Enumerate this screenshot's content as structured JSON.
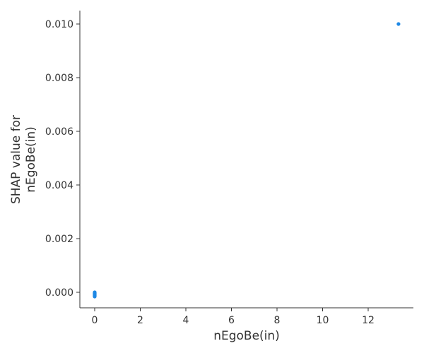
{
  "chart_data": {
    "type": "scatter",
    "title": "",
    "xlabel": "nEgoBe(in)",
    "ylabel_lines": [
      "SHAP value for",
      "nEgoBe(in)"
    ],
    "xlim": [
      -0.6,
      14.0
    ],
    "ylim": [
      -0.00058,
      0.0106
    ],
    "x_ticks": [
      0,
      2,
      4,
      6,
      8,
      10,
      12
    ],
    "x_tick_labels": [
      "0",
      "2",
      "4",
      "6",
      "8",
      "10",
      "12"
    ],
    "y_ticks": [
      0.0,
      0.002,
      0.004,
      0.006,
      0.008,
      0.01
    ],
    "y_tick_labels": [
      "0.000",
      "0.002",
      "0.004",
      "0.006",
      "0.008",
      "0.010"
    ],
    "grid": false,
    "legend": "none",
    "point_color": "#1E88E5",
    "axis_color": "#333333",
    "series": [
      {
        "x": [
          0,
          0,
          0,
          0,
          0,
          0,
          0,
          0,
          0,
          0,
          0,
          0,
          13.33
        ],
        "y": [
          -2e-05,
          -4e-05,
          -6e-05,
          -8e-05,
          -0.0001,
          -0.00012,
          -0.00014,
          -0.00016,
          0.0,
          -3e-05,
          -7e-05,
          -0.00011,
          0.01
        ]
      }
    ]
  }
}
